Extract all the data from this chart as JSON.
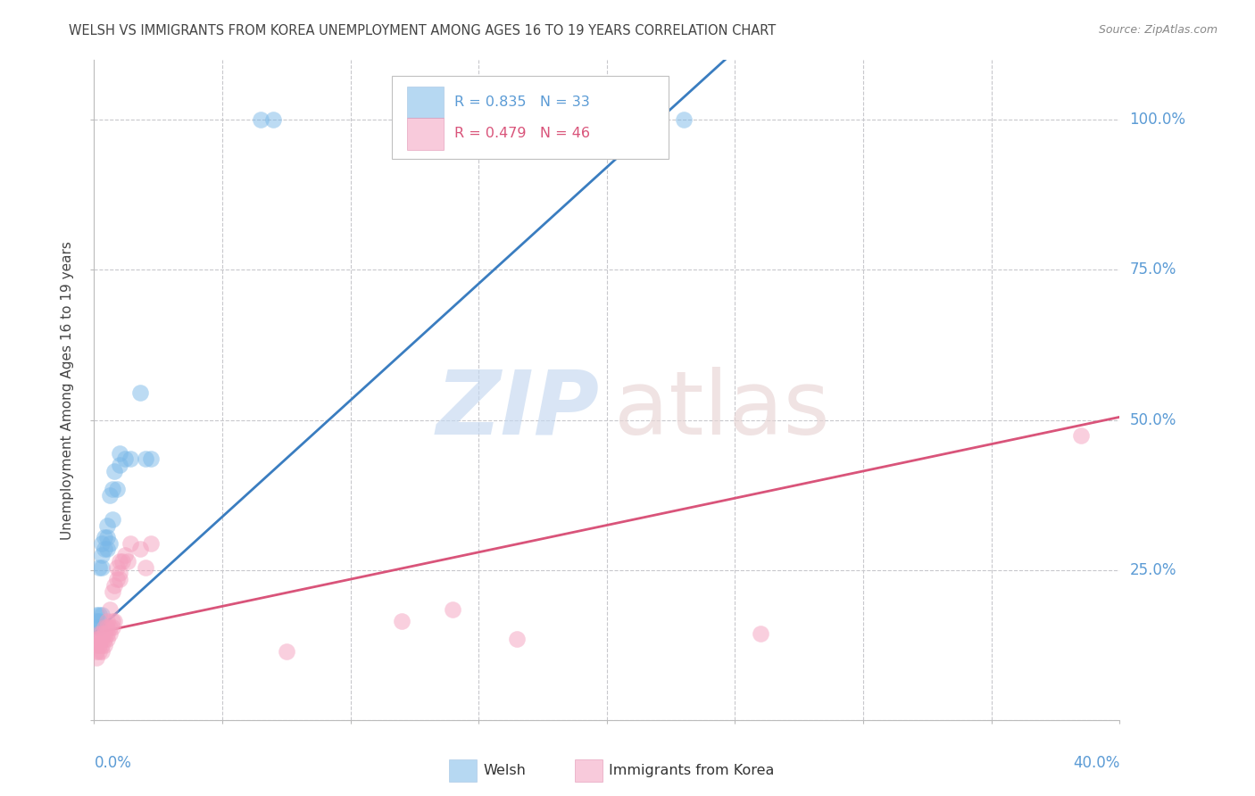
{
  "title": "WELSH VS IMMIGRANTS FROM KOREA UNEMPLOYMENT AMONG AGES 16 TO 19 YEARS CORRELATION CHART",
  "source": "Source: ZipAtlas.com",
  "ylabel": "Unemployment Among Ages 16 to 19 years",
  "right_axis_color": "#5b9bd5",
  "korea_line_color": "#d9547a",
  "welsh_color": "#7ab8e8",
  "korea_color": "#f4a0be",
  "welsh_line_color": "#3a7dc0",
  "grid_color": "#c8c8cc",
  "title_color": "#444444",
  "legend_welsh_text": "R = 0.835   N = 33",
  "legend_korea_text": "R = 0.479   N = 46",
  "xlim": [
    0.0,
    0.4
  ],
  "ylim": [
    0.0,
    1.1
  ],
  "welsh_x": [
    0.001,
    0.001,
    0.001,
    0.002,
    0.002,
    0.002,
    0.002,
    0.003,
    0.003,
    0.003,
    0.003,
    0.004,
    0.004,
    0.005,
    0.005,
    0.005,
    0.006,
    0.006,
    0.007,
    0.007,
    0.008,
    0.009,
    0.01,
    0.01,
    0.012,
    0.014,
    0.018,
    0.02,
    0.022,
    0.065,
    0.07,
    0.21,
    0.23
  ],
  "welsh_y": [
    0.155,
    0.165,
    0.175,
    0.155,
    0.165,
    0.175,
    0.255,
    0.175,
    0.255,
    0.275,
    0.295,
    0.285,
    0.305,
    0.285,
    0.305,
    0.325,
    0.295,
    0.375,
    0.335,
    0.385,
    0.415,
    0.385,
    0.425,
    0.445,
    0.435,
    0.435,
    0.545,
    0.435,
    0.435,
    1.0,
    1.0,
    1.0,
    1.0
  ],
  "korea_x": [
    0.001,
    0.001,
    0.001,
    0.001,
    0.002,
    0.002,
    0.002,
    0.002,
    0.003,
    0.003,
    0.003,
    0.003,
    0.004,
    0.004,
    0.004,
    0.004,
    0.005,
    0.005,
    0.005,
    0.005,
    0.006,
    0.006,
    0.006,
    0.007,
    0.007,
    0.007,
    0.008,
    0.008,
    0.009,
    0.009,
    0.01,
    0.01,
    0.01,
    0.011,
    0.012,
    0.013,
    0.014,
    0.018,
    0.02,
    0.022,
    0.075,
    0.12,
    0.14,
    0.165,
    0.26,
    0.385
  ],
  "korea_y": [
    0.105,
    0.115,
    0.125,
    0.135,
    0.115,
    0.125,
    0.135,
    0.145,
    0.115,
    0.125,
    0.135,
    0.145,
    0.125,
    0.135,
    0.145,
    0.155,
    0.135,
    0.145,
    0.155,
    0.165,
    0.145,
    0.155,
    0.185,
    0.155,
    0.165,
    0.215,
    0.165,
    0.225,
    0.235,
    0.255,
    0.245,
    0.265,
    0.235,
    0.265,
    0.275,
    0.265,
    0.295,
    0.285,
    0.255,
    0.295,
    0.115,
    0.165,
    0.185,
    0.135,
    0.145,
    0.475
  ],
  "welsh_line_x": [
    0.0,
    0.22
  ],
  "welsh_line_y_start": 0.145,
  "welsh_line_slope": 3.88,
  "korea_line_x": [
    0.0,
    0.4
  ],
  "korea_line_y_start": 0.145,
  "korea_line_slope": 0.9
}
